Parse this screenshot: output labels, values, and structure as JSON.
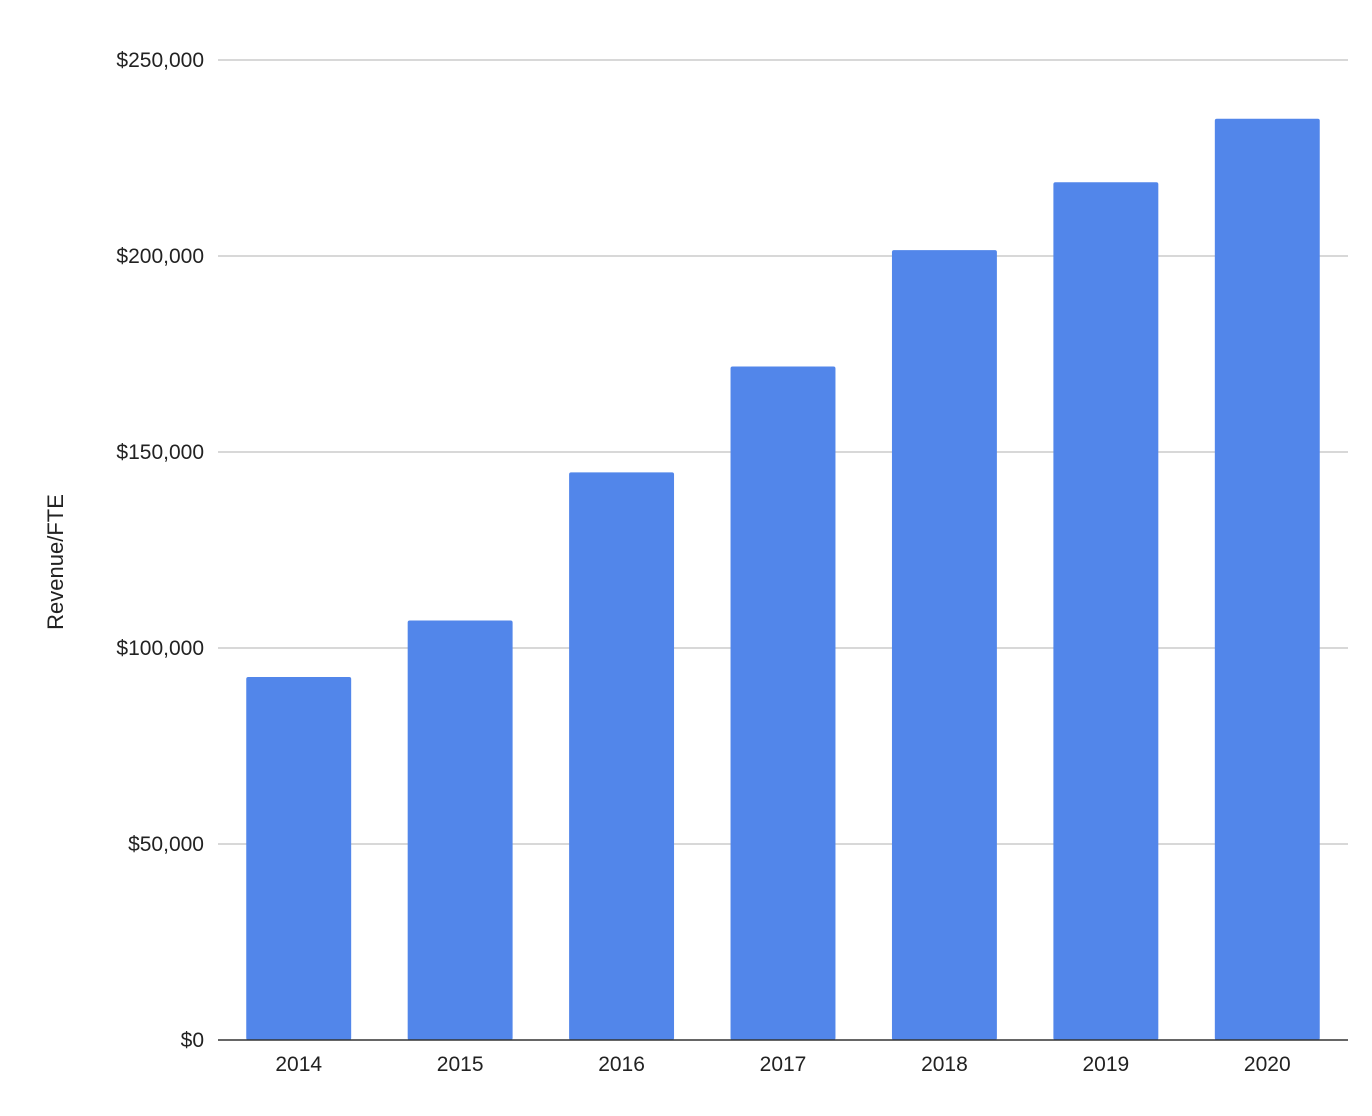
{
  "chart_data": {
    "type": "bar",
    "title": "",
    "xlabel": "",
    "ylabel": "Revenue/FTE",
    "categories": [
      "2014",
      "2015",
      "2016",
      "2017",
      "2018",
      "2019",
      "2020"
    ],
    "values": [
      92600,
      107000,
      144800,
      171800,
      201500,
      218800,
      235000
    ],
    "ylim": [
      0,
      250000
    ],
    "yticks": [
      0,
      50000,
      100000,
      150000,
      200000,
      250000
    ],
    "ytick_labels": [
      "$0",
      "$50,000",
      "$100,000",
      "$150,000",
      "$200,000",
      "$250,000"
    ],
    "grid": true,
    "legend": "none",
    "bar_color": "#5286ea",
    "grid_color": "#cccccc"
  }
}
